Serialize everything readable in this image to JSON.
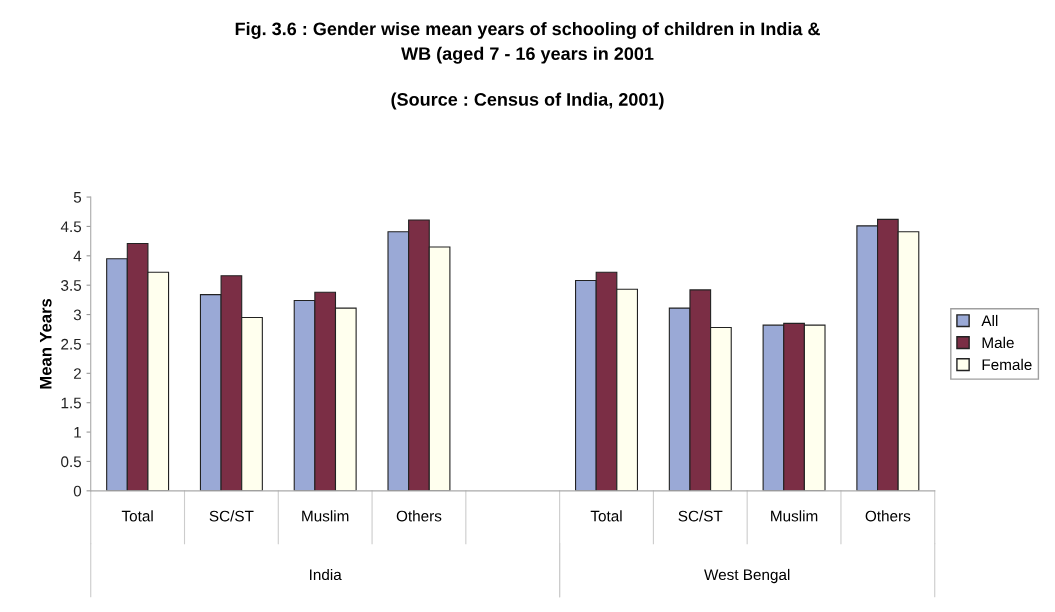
{
  "chart_data": {
    "type": "bar",
    "title": "Fig. 3.6 : Gender wise mean years of schooling of children in India &\nWB (aged 7 - 16 years in 2001",
    "subtitle": "(Source : Census of India, 2001)",
    "ylabel": "Mean Years",
    "categories": [
      "Total",
      "SC/ST",
      "Muslim",
      "Others",
      null,
      "Total",
      "SC/ST",
      "Muslim",
      "Others"
    ],
    "series": [
      {
        "name": "All",
        "color": "#9aa9d6",
        "values": [
          3.95,
          3.34,
          3.24,
          4.41,
          null,
          3.58,
          3.11,
          2.82,
          4.51
        ]
      },
      {
        "name": "Male",
        "color": "#7b2e45",
        "values": [
          4.21,
          3.66,
          3.38,
          4.61,
          null,
          3.72,
          3.42,
          2.85,
          4.62
        ]
      },
      {
        "name": "Female",
        "color": "#ffffee",
        "values": [
          3.72,
          2.95,
          3.11,
          4.15,
          null,
          3.43,
          2.78,
          2.82,
          4.41
        ]
      }
    ],
    "annotations": [
      "India",
      "West Bengal"
    ],
    "ylim": [
      0,
      5
    ],
    "yticks": [
      0,
      0.5,
      1,
      1.5,
      2,
      2.5,
      3,
      3.5,
      4,
      4.5,
      5
    ],
    "grid": false,
    "legend": "right"
  }
}
